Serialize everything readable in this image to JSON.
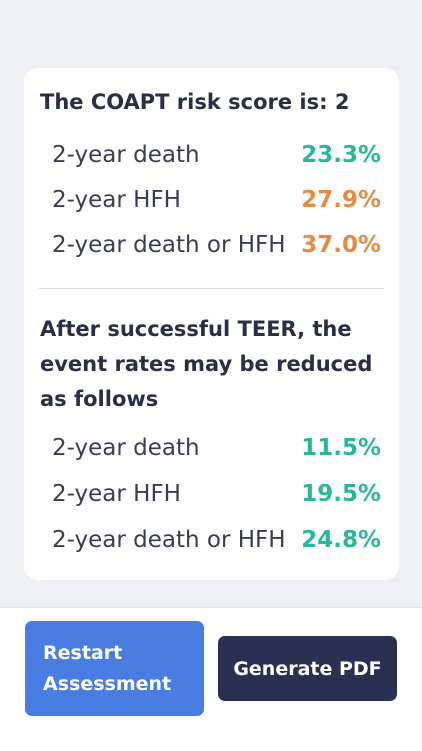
{
  "results": {
    "score_heading": "The COAPT risk score is: 2",
    "baseline_rows": [
      {
        "label": "2-year death",
        "value": "23.3%",
        "color": "#2bb59a"
      },
      {
        "label": "2-year HFH",
        "value": "27.9%",
        "color": "#e38a43"
      },
      {
        "label": "2-year death or HFH",
        "value": "37.0%",
        "color": "#e38a43"
      }
    ],
    "teer_heading": "After successful TEER, the event rates may be reduced as follows",
    "teer_rows": [
      {
        "label": "2-year death",
        "value": "11.5%",
        "color": "#2bb59a"
      },
      {
        "label": "2-year HFH",
        "value": "19.5%",
        "color": "#2bb59a"
      },
      {
        "label": "2-year death or HFH",
        "value": "24.8%",
        "color": "#2bb59a"
      }
    ]
  },
  "actions": {
    "restart_label": "Restart\nAssessment",
    "pdf_label": "Generate PDF"
  },
  "colors": {
    "teal": "#2bb59a",
    "orange": "#e38a43",
    "primary_blue": "#4a7de2",
    "navy": "#2a3052"
  }
}
